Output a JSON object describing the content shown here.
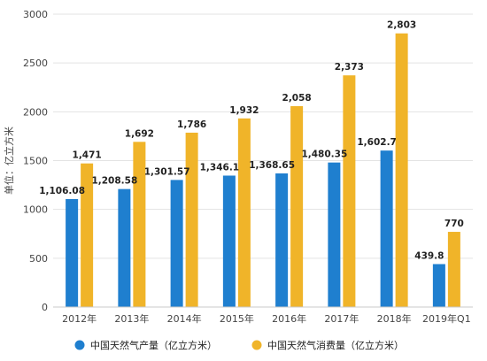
{
  "chart_data": {
    "type": "bar",
    "title": "",
    "xlabel": "",
    "ylabel": "单位：亿立方米",
    "ylim": [
      0,
      3000
    ],
    "yticks": [
      0,
      500,
      1000,
      1500,
      2000,
      2500,
      3000
    ],
    "grid": true,
    "legend_position": "bottom",
    "categories": [
      "2012年",
      "2013年",
      "2014年",
      "2015年",
      "2016年",
      "2017年",
      "2018年",
      "2019年Q1"
    ],
    "series": [
      {
        "name": "中国天然气产量（亿立方米）",
        "color": "#1f7fcf",
        "values": [
          1106.08,
          1208.58,
          1301.57,
          1346.1,
          1368.65,
          1480.35,
          1602.7,
          439.8
        ],
        "labels": [
          "1,106.08",
          "1,208.58",
          "1,301.57",
          "1,346.1",
          "1,368.65",
          "1,480.35",
          "1,602.7",
          "439.8"
        ]
      },
      {
        "name": "中国天然气消费量（亿立方米）",
        "color": "#f0b429",
        "values": [
          1471,
          1692,
          1786,
          1932,
          2058,
          2373,
          2803,
          770
        ],
        "labels": [
          "1,471",
          "1,692",
          "1,786",
          "1,932",
          "2,058",
          "2,373",
          "2,803",
          "770"
        ]
      }
    ]
  }
}
